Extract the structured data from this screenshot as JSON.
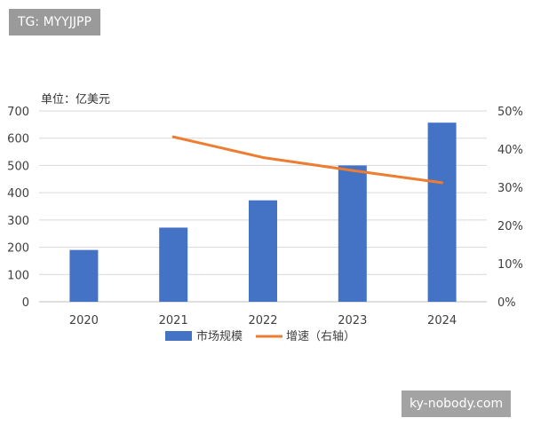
{
  "watermarks": {
    "top": "TG: MYYJJPP",
    "bottom": "ky-nobody.com"
  },
  "chart_data": {
    "type": "bar",
    "unit_label": "单位：亿美元",
    "categories": [
      "2020",
      "2021",
      "2022",
      "2023",
      "2024"
    ],
    "y_left": {
      "range": [
        0,
        700
      ],
      "ticks": [
        "0",
        "100",
        "200",
        "300",
        "400",
        "500",
        "600",
        "700"
      ]
    },
    "y_right": {
      "range": [
        0,
        50
      ],
      "ticks": [
        "0%",
        "10%",
        "20%",
        "30%",
        "40%",
        "50%"
      ]
    },
    "series": [
      {
        "name": "市场规模",
        "type": "bar",
        "axis": "left",
        "color": "#4472c4",
        "values": [
          190,
          272,
          372,
          500,
          657
        ]
      },
      {
        "name": "增速（右轴）",
        "type": "line",
        "axis": "right",
        "color": "#ed7d31",
        "values": [
          null,
          43.2,
          37.8,
          34.4,
          31.2
        ]
      }
    ],
    "grid": true,
    "legend_position": "bottom"
  }
}
